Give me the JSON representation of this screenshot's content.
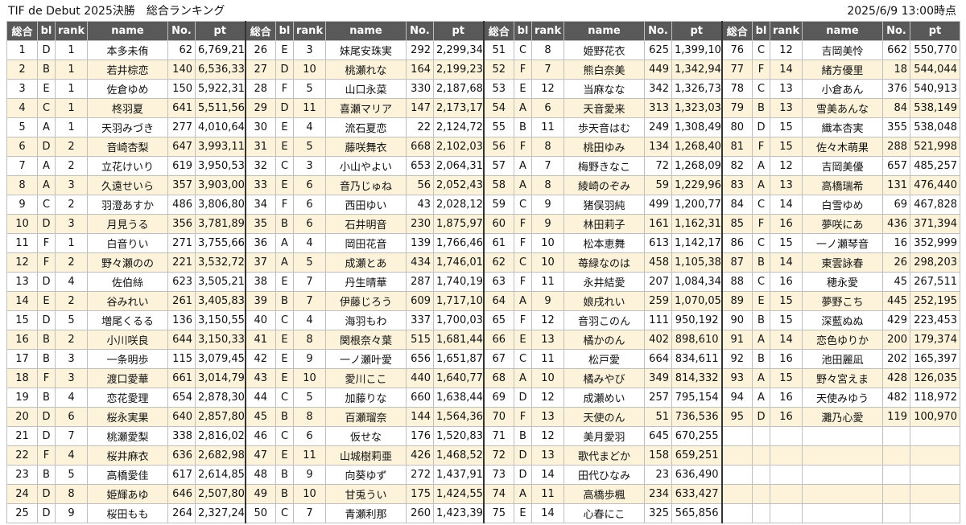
{
  "title": "TIF de Debut 2025決勝　総合ランキング",
  "timestamp": "2025/6/9 13:00時点",
  "columns": [
    "総合",
    "bl",
    "rank",
    "name",
    "No.",
    "pt"
  ],
  "colors": {
    "header_bg": "#595959",
    "header_text": "#ffffff",
    "row_alt": "#fdf3db",
    "row": "#ffffff"
  },
  "entries": [
    [
      "1",
      "D",
      "1",
      "本多未侑",
      "62",
      "6,769,213"
    ],
    [
      "2",
      "B",
      "1",
      "若井棕恋",
      "140",
      "6,536,331"
    ],
    [
      "3",
      "E",
      "1",
      "佐倉ゆめ",
      "150",
      "5,922,314"
    ],
    [
      "4",
      "C",
      "1",
      "柊羽夏",
      "641",
      "5,511,560"
    ],
    [
      "5",
      "A",
      "1",
      "天羽みづき",
      "277",
      "4,010,648"
    ],
    [
      "6",
      "D",
      "2",
      "音崎杏梨",
      "647",
      "3,993,116"
    ],
    [
      "7",
      "A",
      "2",
      "立花けいり",
      "619",
      "3,950,530"
    ],
    [
      "8",
      "A",
      "3",
      "久遠せいら",
      "357",
      "3,903,002"
    ],
    [
      "9",
      "C",
      "2",
      "羽澄あすか",
      "486",
      "3,806,803"
    ],
    [
      "10",
      "D",
      "3",
      "月見うる",
      "356",
      "3,781,899"
    ],
    [
      "11",
      "F",
      "1",
      "白音りい",
      "271",
      "3,755,668"
    ],
    [
      "12",
      "F",
      "2",
      "野々瀬のの",
      "221",
      "3,532,720"
    ],
    [
      "13",
      "D",
      "4",
      "佐伯絲",
      "623",
      "3,505,214"
    ],
    [
      "14",
      "E",
      "2",
      "谷みれい",
      "261",
      "3,405,831"
    ],
    [
      "15",
      "D",
      "5",
      "増尾くるる",
      "136",
      "3,150,559"
    ],
    [
      "16",
      "B",
      "2",
      "小川咲良",
      "644",
      "3,150,334"
    ],
    [
      "17",
      "B",
      "3",
      "一条明歩",
      "115",
      "3,079,453"
    ],
    [
      "18",
      "F",
      "3",
      "渡口愛華",
      "661",
      "3,014,795"
    ],
    [
      "19",
      "B",
      "4",
      "恋花愛理",
      "654",
      "2,878,302"
    ],
    [
      "20",
      "D",
      "6",
      "桜永実果",
      "640",
      "2,857,808"
    ],
    [
      "21",
      "D",
      "7",
      "桃瀬愛梨",
      "338",
      "2,816,020"
    ],
    [
      "22",
      "F",
      "4",
      "桜井麻衣",
      "636",
      "2,682,989"
    ],
    [
      "23",
      "B",
      "5",
      "高橋愛佳",
      "617",
      "2,614,850"
    ],
    [
      "24",
      "D",
      "8",
      "姫輝あゆ",
      "646",
      "2,507,803"
    ],
    [
      "25",
      "D",
      "9",
      "桜田もも",
      "264",
      "2,327,241"
    ],
    [
      "26",
      "E",
      "3",
      "妹尾安珠実",
      "292",
      "2,299,342"
    ],
    [
      "27",
      "D",
      "10",
      "桃瀬れな",
      "164",
      "2,199,238"
    ],
    [
      "28",
      "F",
      "5",
      "山口永菜",
      "330",
      "2,187,687"
    ],
    [
      "29",
      "D",
      "11",
      "喜瀬マリア",
      "147",
      "2,173,173"
    ],
    [
      "30",
      "E",
      "4",
      "流石夏恋",
      "22",
      "2,124,729"
    ],
    [
      "31",
      "E",
      "5",
      "藤咲舞衣",
      "668",
      "2,102,031"
    ],
    [
      "32",
      "C",
      "3",
      "小山やよい",
      "653",
      "2,064,312"
    ],
    [
      "33",
      "E",
      "6",
      "音乃じゅね",
      "56",
      "2,052,439"
    ],
    [
      "34",
      "F",
      "6",
      "西田ゆい",
      "43",
      "2,028,125"
    ],
    [
      "35",
      "B",
      "6",
      "石井明音",
      "230",
      "1,875,979"
    ],
    [
      "36",
      "A",
      "4",
      "岡田花音",
      "139",
      "1,766,468"
    ],
    [
      "37",
      "A",
      "5",
      "成瀬とあ",
      "434",
      "1,746,019"
    ],
    [
      "38",
      "E",
      "7",
      "丹生晴華",
      "287",
      "1,740,199"
    ],
    [
      "39",
      "B",
      "7",
      "伊藤じろう",
      "609",
      "1,717,104"
    ],
    [
      "40",
      "C",
      "4",
      "海羽もわ",
      "337",
      "1,700,036"
    ],
    [
      "41",
      "E",
      "8",
      "関根奈々葉",
      "515",
      "1,681,448"
    ],
    [
      "42",
      "E",
      "9",
      "一ノ瀬叶愛",
      "656",
      "1,651,872"
    ],
    [
      "43",
      "E",
      "10",
      "愛川ここ",
      "440",
      "1,640,779"
    ],
    [
      "44",
      "C",
      "5",
      "加藤りな",
      "660",
      "1,638,448"
    ],
    [
      "45",
      "B",
      "8",
      "百瀬瑠奈",
      "144",
      "1,564,363"
    ],
    [
      "46",
      "C",
      "6",
      "仮せな",
      "176",
      "1,520,831"
    ],
    [
      "47",
      "E",
      "11",
      "山城樹莉亜",
      "426",
      "1,468,528"
    ],
    [
      "48",
      "B",
      "9",
      "向葵ゆず",
      "272",
      "1,437,913"
    ],
    [
      "49",
      "B",
      "10",
      "甘兎うい",
      "175",
      "1,424,552"
    ],
    [
      "50",
      "C",
      "7",
      "青瀬利那",
      "260",
      "1,423,397"
    ],
    [
      "51",
      "C",
      "8",
      "姫野花衣",
      "625",
      "1,399,109"
    ],
    [
      "52",
      "F",
      "7",
      "熊白奈美",
      "449",
      "1,342,948"
    ],
    [
      "53",
      "E",
      "12",
      "当麻なな",
      "342",
      "1,326,733"
    ],
    [
      "54",
      "A",
      "6",
      "天音愛来",
      "313",
      "1,323,030"
    ],
    [
      "55",
      "B",
      "11",
      "歩天音はむ",
      "249",
      "1,308,492"
    ],
    [
      "56",
      "F",
      "8",
      "桃田ゆみ",
      "134",
      "1,268,408"
    ],
    [
      "57",
      "A",
      "7",
      "梅野きなこ",
      "72",
      "1,268,093"
    ],
    [
      "58",
      "A",
      "8",
      "綾崎のぞみ",
      "59",
      "1,229,962"
    ],
    [
      "59",
      "C",
      "9",
      "猪俣羽純",
      "499",
      "1,200,778"
    ],
    [
      "60",
      "F",
      "9",
      "林田莉子",
      "161",
      "1,162,317"
    ],
    [
      "61",
      "F",
      "10",
      "松本恵舞",
      "613",
      "1,142,173"
    ],
    [
      "62",
      "C",
      "10",
      "苺緑なのは",
      "458",
      "1,105,383"
    ],
    [
      "63",
      "F",
      "11",
      "永井結愛",
      "207",
      "1,084,343"
    ],
    [
      "64",
      "A",
      "9",
      "娘戌れい",
      "259",
      "1,070,058"
    ],
    [
      "65",
      "F",
      "12",
      "音羽このん",
      "111",
      "950,192"
    ],
    [
      "66",
      "E",
      "13",
      "橘かのん",
      "402",
      "898,610"
    ],
    [
      "67",
      "C",
      "11",
      "松戸愛",
      "664",
      "834,611"
    ],
    [
      "68",
      "A",
      "10",
      "橘みやび",
      "349",
      "814,332"
    ],
    [
      "69",
      "D",
      "12",
      "成瀬めい",
      "257",
      "795,154"
    ],
    [
      "70",
      "F",
      "13",
      "天使のん",
      "51",
      "736,536"
    ],
    [
      "71",
      "B",
      "12",
      "美月愛羽",
      "645",
      "670,255"
    ],
    [
      "72",
      "D",
      "13",
      "歌代まどか",
      "158",
      "659,251"
    ],
    [
      "73",
      "D",
      "14",
      "田代ひなみ",
      "23",
      "636,490"
    ],
    [
      "74",
      "A",
      "11",
      "高橋歩楓",
      "234",
      "633,427"
    ],
    [
      "75",
      "E",
      "14",
      "心春にこ",
      "325",
      "565,856"
    ],
    [
      "76",
      "C",
      "12",
      "吉岡美怜",
      "662",
      "550,770"
    ],
    [
      "77",
      "F",
      "14",
      "緒方優里",
      "18",
      "544,044"
    ],
    [
      "78",
      "C",
      "13",
      "小倉あん",
      "376",
      "540,913"
    ],
    [
      "79",
      "B",
      "13",
      "雪美あんな",
      "84",
      "538,149"
    ],
    [
      "80",
      "D",
      "15",
      "織本杏実",
      "355",
      "538,048"
    ],
    [
      "81",
      "F",
      "15",
      "佐々木萌果",
      "288",
      "521,998"
    ],
    [
      "82",
      "A",
      "12",
      "吉岡美優",
      "657",
      "485,257"
    ],
    [
      "83",
      "A",
      "13",
      "高橋瑞希",
      "131",
      "476,440"
    ],
    [
      "84",
      "C",
      "14",
      "白雪ゆめ",
      "69",
      "467,828"
    ],
    [
      "85",
      "F",
      "16",
      "夢咲にあ",
      "436",
      "371,394"
    ],
    [
      "86",
      "C",
      "15",
      "一ノ瀬琴音",
      "16",
      "352,999"
    ],
    [
      "87",
      "B",
      "14",
      "東雲詠春",
      "26",
      "298,203"
    ],
    [
      "88",
      "C",
      "16",
      "穂永愛",
      "45",
      "267,511"
    ],
    [
      "89",
      "E",
      "15",
      "夢野こち",
      "445",
      "252,195"
    ],
    [
      "90",
      "B",
      "15",
      "深藍ぬぬ",
      "429",
      "223,453"
    ],
    [
      "91",
      "A",
      "14",
      "恋色ゆりか",
      "200",
      "179,374"
    ],
    [
      "92",
      "B",
      "16",
      "池田麗凪",
      "202",
      "165,397"
    ],
    [
      "93",
      "A",
      "15",
      "野々宮えま",
      "428",
      "126,035"
    ],
    [
      "94",
      "A",
      "16",
      "天使みゆう",
      "482",
      "118,972"
    ],
    [
      "95",
      "D",
      "16",
      "灘乃心愛",
      "119",
      "100,970"
    ]
  ]
}
